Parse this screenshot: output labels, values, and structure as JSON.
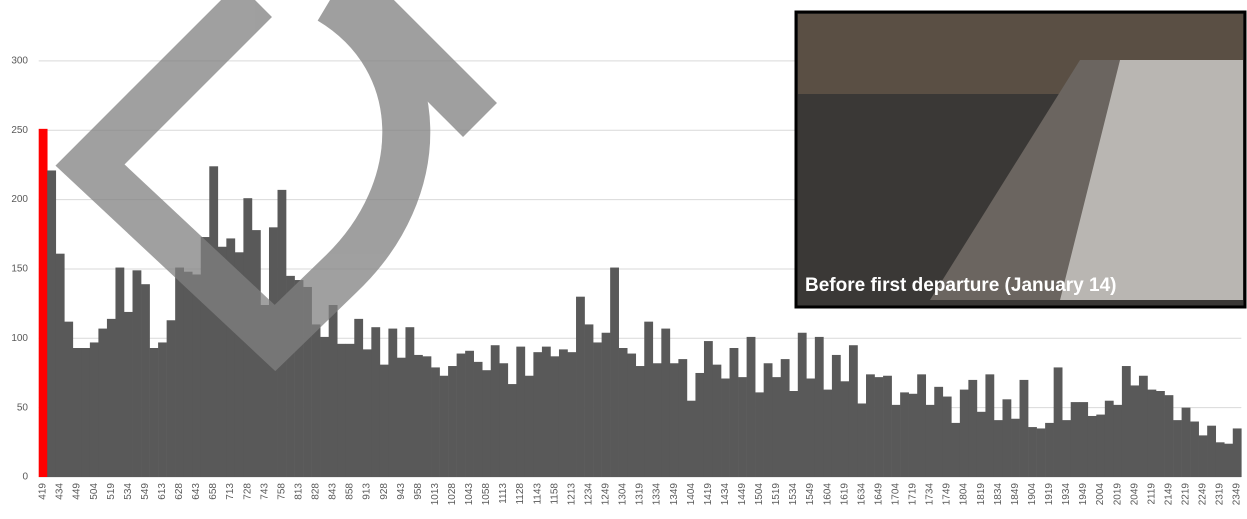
{
  "chart_data": {
    "type": "bar",
    "annotation": "Before first departure (January 14)",
    "categories": [
      "419",
      null,
      "434",
      null,
      "449",
      null,
      "504",
      null,
      "519",
      null,
      "534",
      null,
      "549",
      null,
      "613",
      null,
      "628",
      null,
      "643",
      null,
      "658",
      null,
      "713",
      null,
      "728",
      null,
      "743",
      null,
      "758",
      null,
      "813",
      null,
      "828",
      null,
      "843",
      null,
      "858",
      null,
      "913",
      null,
      "928",
      null,
      "943",
      null,
      "958",
      null,
      "1013",
      null,
      "1028",
      null,
      "1043",
      null,
      "1058",
      null,
      "1113",
      null,
      "1128",
      null,
      "1143",
      null,
      "1158",
      null,
      "1213",
      null,
      "1234",
      null,
      "1249",
      null,
      "1304",
      null,
      "1319",
      null,
      "1334",
      null,
      "1349",
      null,
      "1404",
      null,
      "1419",
      null,
      "1434",
      null,
      "1449",
      null,
      "1504",
      null,
      "1519",
      null,
      "1534",
      null,
      "1549",
      null,
      "1604",
      null,
      "1619",
      null,
      "1634",
      null,
      "1649",
      null,
      "1704",
      null,
      "1719",
      null,
      "1734",
      null,
      "1749",
      null,
      "1804",
      null,
      "1819",
      null,
      "1834",
      null,
      "1849",
      null,
      "1904",
      null,
      "1919",
      null,
      "1934",
      null,
      "1949",
      null,
      "2004",
      null,
      "2019",
      null,
      "2049",
      null,
      "2119",
      null,
      "2149",
      null,
      "2219",
      null,
      "2249",
      null,
      "2319",
      null,
      "2349"
    ],
    "values": [
      251,
      221,
      161,
      112,
      93,
      93,
      97,
      107,
      114,
      151,
      119,
      149,
      139,
      93,
      97,
      113,
      151,
      148,
      146,
      173,
      224,
      166,
      172,
      162,
      201,
      178,
      124,
      180,
      207,
      145,
      142,
      137,
      110,
      101,
      124,
      96,
      96,
      114,
      92,
      108,
      81,
      107,
      86,
      108,
      88,
      87,
      79,
      73,
      80,
      89,
      91,
      83,
      77,
      95,
      82,
      67,
      94,
      73,
      90,
      94,
      87,
      92,
      90,
      130,
      110,
      97,
      104,
      151,
      93,
      89,
      80,
      112,
      82,
      107,
      82,
      85,
      55,
      75,
      98,
      81,
      71,
      93,
      72,
      101,
      61,
      82,
      72,
      85,
      62,
      104,
      71,
      101,
      63,
      88,
      69,
      95,
      53,
      74,
      72,
      73,
      52,
      61,
      60,
      74,
      52,
      65,
      58,
      39,
      63,
      70,
      47,
      74,
      41,
      56,
      42,
      70,
      36,
      35,
      39,
      79,
      41,
      54,
      54,
      44,
      45,
      55,
      52,
      80,
      66,
      73,
      63,
      62,
      59,
      41,
      50,
      40,
      30,
      37,
      25,
      24,
      35
    ],
    "color": "#595959",
    "highlight": {
      "index": 0,
      "color": "#ff0000"
    },
    "ylim": [
      0,
      340
    ],
    "yticks": [
      0,
      50,
      100,
      150,
      200,
      250,
      300
    ],
    "grid": true
  }
}
